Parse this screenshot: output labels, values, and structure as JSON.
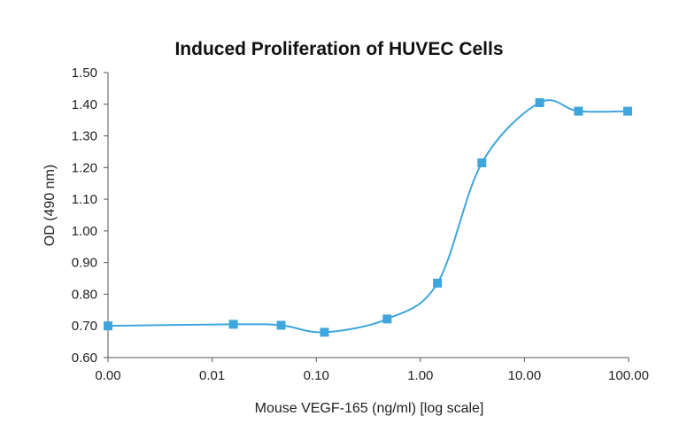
{
  "chart_data": {
    "type": "line",
    "title": "Induced Proliferation of HUVEC Cells",
    "xlabel": "Mouse VEGF-165 (ng/ml) [log scale]",
    "ylabel": "OD (490 nm)",
    "x_scale": "log",
    "x_tick_labels": [
      "0.00",
      "0.01",
      "0.10",
      "1.00",
      "10.00",
      "100.00"
    ],
    "y_tick_labels": [
      "0.60",
      "0.70",
      "0.80",
      "0.90",
      "1.00",
      "1.10",
      "1.20",
      "1.30",
      "1.40",
      "1.50"
    ],
    "ylim": [
      0.6,
      1.5
    ],
    "grid": false,
    "legend": "none",
    "series": [
      {
        "marker": "square",
        "color": "#3ea6dc",
        "x": [
          0.001,
          0.016,
          0.046,
          0.12,
          0.48,
          1.46,
          3.9,
          14,
          33,
          98
        ],
        "y": [
          0.7,
          0.705,
          0.702,
          0.68,
          0.722,
          0.835,
          1.215,
          1.405,
          1.378,
          1.378
        ]
      }
    ]
  }
}
